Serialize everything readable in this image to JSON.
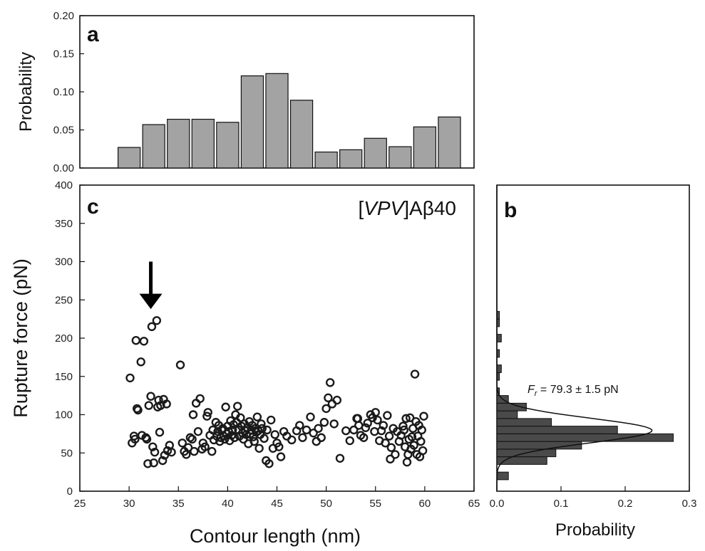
{
  "chart_data": [
    {
      "panel": "a",
      "type": "bar",
      "xlabel": "",
      "ylabel": "Probability",
      "xlim": [
        25,
        65
      ],
      "ylim": [
        0,
        0.2
      ],
      "yticks": [
        "0.00",
        "0.05",
        "0.10",
        "0.15",
        "0.20"
      ],
      "bin_width": 2.5,
      "x": [
        30,
        32.5,
        35,
        37.5,
        40,
        42.5,
        45,
        47.5,
        50,
        52.5,
        55,
        57.5,
        60,
        62.5
      ],
      "values": [
        0.027,
        0.057,
        0.064,
        0.064,
        0.06,
        0.121,
        0.124,
        0.089,
        0.021,
        0.024,
        0.039,
        0.028,
        0.054,
        0.067
      ]
    },
    {
      "panel": "c",
      "type": "scatter",
      "annotation": "[VPV]Aβ40",
      "annotation_parts": [
        "[",
        "VPV",
        "]Aβ40"
      ],
      "xlabel": "Contour length (nm)",
      "ylabel": "Rupture force (pN)",
      "xlim": [
        25,
        65
      ],
      "ylim": [
        0,
        400
      ],
      "xticks": [
        "25",
        "30",
        "35",
        "40",
        "45",
        "50",
        "55",
        "60",
        "65"
      ],
      "yticks": [
        "0",
        "50",
        "100",
        "150",
        "200",
        "250",
        "300",
        "350",
        "400"
      ],
      "arrow_x": 32.2,
      "points": [
        [
          30.1,
          148
        ],
        [
          30.3,
          63
        ],
        [
          30.5,
          72
        ],
        [
          30.7,
          197
        ],
        [
          30.8,
          108
        ],
        [
          30.9,
          106
        ],
        [
          30.6,
          68
        ],
        [
          31.2,
          169
        ],
        [
          31.5,
          196
        ],
        [
          31.3,
          73
        ],
        [
          31.7,
          70
        ],
        [
          31.8,
          68
        ],
        [
          31.9,
          36
        ],
        [
          32.0,
          112
        ],
        [
          32.2,
          124
        ],
        [
          32.3,
          215
        ],
        [
          32.4,
          58
        ],
        [
          32.5,
          37
        ],
        [
          32.6,
          51
        ],
        [
          32.8,
          223
        ],
        [
          32.9,
          110
        ],
        [
          33.0,
          119
        ],
        [
          33.1,
          77
        ],
        [
          33.2,
          112
        ],
        [
          33.4,
          40
        ],
        [
          33.5,
          120
        ],
        [
          33.6,
          47
        ],
        [
          33.8,
          114
        ],
        [
          33.9,
          53
        ],
        [
          34.1,
          60
        ],
        [
          34.3,
          51
        ],
        [
          35.2,
          165
        ],
        [
          35.4,
          63
        ],
        [
          35.6,
          52
        ],
        [
          35.8,
          48
        ],
        [
          36.0,
          57
        ],
        [
          36.2,
          70
        ],
        [
          36.4,
          68
        ],
        [
          36.5,
          100
        ],
        [
          36.6,
          52
        ],
        [
          36.8,
          115
        ],
        [
          37.0,
          78
        ],
        [
          37.2,
          121
        ],
        [
          37.4,
          55
        ],
        [
          37.5,
          63
        ],
        [
          37.7,
          58
        ],
        [
          37.9,
          98
        ],
        [
          38.0,
          103
        ],
        [
          38.2,
          73
        ],
        [
          38.4,
          52
        ],
        [
          38.5,
          80
        ],
        [
          38.6,
          67
        ],
        [
          38.8,
          90
        ],
        [
          38.9,
          72
        ],
        [
          39.0,
          78
        ],
        [
          39.1,
          86
        ],
        [
          39.2,
          65
        ],
        [
          39.3,
          70
        ],
        [
          39.4,
          80
        ],
        [
          39.5,
          82
        ],
        [
          39.6,
          72
        ],
        [
          39.7,
          68
        ],
        [
          39.8,
          110
        ],
        [
          39.9,
          75
        ],
        [
          40.0,
          85
        ],
        [
          40.1,
          78
        ],
        [
          40.2,
          66
        ],
        [
          40.3,
          92
        ],
        [
          40.4,
          73
        ],
        [
          40.5,
          80
        ],
        [
          40.6,
          87
        ],
        [
          40.7,
          70
        ],
        [
          40.8,
          100
        ],
        [
          40.9,
          90
        ],
        [
          41.0,
          111
        ],
        [
          41.1,
          80
        ],
        [
          41.2,
          72
        ],
        [
          41.3,
          96
        ],
        [
          41.4,
          85
        ],
        [
          41.5,
          76
        ],
        [
          41.6,
          68
        ],
        [
          41.7,
          88
        ],
        [
          41.8,
          79
        ],
        [
          41.9,
          74
        ],
        [
          42.0,
          83
        ],
        [
          42.1,
          62
        ],
        [
          42.2,
          91
        ],
        [
          42.3,
          75
        ],
        [
          42.4,
          80
        ],
        [
          42.5,
          86
        ],
        [
          42.6,
          71
        ],
        [
          42.7,
          65
        ],
        [
          42.8,
          82
        ],
        [
          42.9,
          77
        ],
        [
          43.0,
          97
        ],
        [
          43.1,
          79
        ],
        [
          43.2,
          56
        ],
        [
          43.3,
          74
        ],
        [
          43.4,
          88
        ],
        [
          43.5,
          82
        ],
        [
          43.7,
          69
        ],
        [
          43.9,
          40
        ],
        [
          44.0,
          80
        ],
        [
          44.2,
          36
        ],
        [
          44.4,
          93
        ],
        [
          44.6,
          56
        ],
        [
          44.8,
          74
        ],
        [
          45.0,
          63
        ],
        [
          45.2,
          58
        ],
        [
          45.4,
          45
        ],
        [
          45.7,
          78
        ],
        [
          46.0,
          72
        ],
        [
          46.5,
          67
        ],
        [
          47.0,
          79
        ],
        [
          47.3,
          86
        ],
        [
          47.6,
          70
        ],
        [
          48.0,
          80
        ],
        [
          48.4,
          97
        ],
        [
          48.7,
          76
        ],
        [
          49.0,
          65
        ],
        [
          49.2,
          82
        ],
        [
          49.5,
          70
        ],
        [
          49.8,
          90
        ],
        [
          50.0,
          108
        ],
        [
          50.2,
          122
        ],
        [
          50.4,
          142
        ],
        [
          50.6,
          114
        ],
        [
          50.8,
          88
        ],
        [
          51.1,
          119
        ],
        [
          51.4,
          43
        ],
        [
          52.0,
          79
        ],
        [
          52.4,
          66
        ],
        [
          52.8,
          80
        ],
        [
          53.1,
          95
        ],
        [
          53.3,
          86
        ],
        [
          53.5,
          73
        ],
        [
          53.8,
          70
        ],
        [
          54.0,
          83
        ],
        [
          54.2,
          89
        ],
        [
          54.5,
          100
        ],
        [
          54.7,
          96
        ],
        [
          54.9,
          78
        ],
        [
          55.0,
          103
        ],
        [
          55.2,
          93
        ],
        [
          55.4,
          66
        ],
        [
          55.6,
          79
        ],
        [
          55.8,
          86
        ],
        [
          56.0,
          63
        ],
        [
          56.2,
          99
        ],
        [
          56.4,
          72
        ],
        [
          56.6,
          57
        ],
        [
          56.8,
          82
        ],
        [
          57.0,
          48
        ],
        [
          57.2,
          78
        ],
        [
          57.4,
          65
        ],
        [
          57.6,
          73
        ],
        [
          57.8,
          85
        ],
        [
          58.0,
          58
        ],
        [
          58.1,
          95
        ],
        [
          58.2,
          38
        ],
        [
          58.3,
          48
        ],
        [
          58.4,
          68
        ],
        [
          58.5,
          96
        ],
        [
          58.6,
          55
        ],
        [
          58.7,
          71
        ],
        [
          58.8,
          82
        ],
        [
          58.9,
          60
        ],
        [
          59.0,
          153
        ],
        [
          59.1,
          91
        ],
        [
          59.2,
          48
        ],
        [
          59.3,
          72
        ],
        [
          59.4,
          86
        ],
        [
          59.5,
          45
        ],
        [
          59.6,
          65
        ],
        [
          59.7,
          80
        ],
        [
          59.8,
          53
        ],
        [
          59.9,
          98
        ],
        [
          56.5,
          42
        ],
        [
          53.2,
          95
        ],
        [
          57.9,
          80
        ]
      ]
    },
    {
      "panel": "b",
      "type": "bar",
      "orientation": "horizontal",
      "xlabel": "Probability",
      "ylabel": "",
      "xlim": [
        0,
        0.3
      ],
      "ylim": [
        0,
        400
      ],
      "xticks": [
        "0.0",
        "0.1",
        "0.2",
        "0.3"
      ],
      "bin_width": 10,
      "bins_y": [
        20,
        40,
        50,
        60,
        70,
        80,
        90,
        100,
        110,
        120,
        130,
        150,
        160,
        180,
        200,
        220,
        230
      ],
      "values": [
        0.018,
        0.078,
        0.092,
        0.132,
        0.275,
        0.188,
        0.085,
        0.032,
        0.046,
        0.018,
        0.004,
        0.004,
        0.007,
        0.004,
        0.007,
        0.004,
        0.004
      ],
      "fit_annotation": "F",
      "fit_annotation_sub": "r",
      "fit_annotation_rest": " = 79.3 ± 1.5 pN",
      "fit_mean": 79.3,
      "fit_sigma": 16,
      "fit_peak": 0.242
    }
  ],
  "panel_letters": {
    "a": "a",
    "b": "b",
    "c": "c"
  }
}
